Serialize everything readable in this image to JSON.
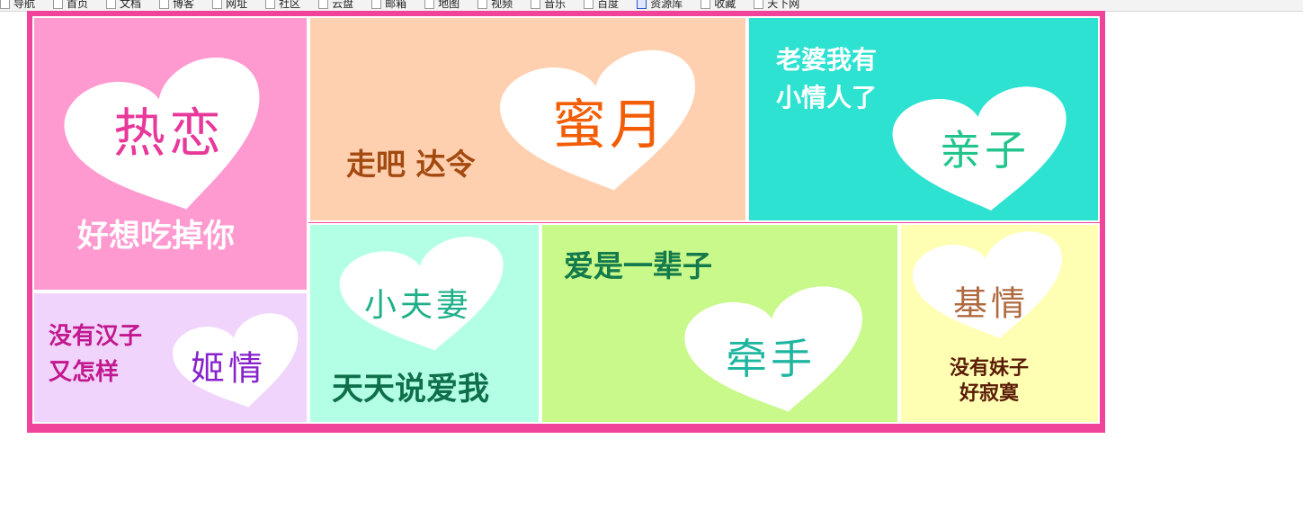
{
  "bookmarks": [
    "导航",
    "首页",
    "文档",
    "博客",
    "网址",
    "社区",
    "云盘",
    "邮箱",
    "地图",
    "视频",
    "音乐",
    "百度",
    "资源库",
    "收藏",
    "天下网"
  ],
  "colors": {
    "frame": "#f0439a",
    "heart": "#ffffff"
  },
  "tiles": {
    "relian": {
      "heart_text": "热恋",
      "caption": "好想吃掉你",
      "bg": "#ff9ad0",
      "heart_color": "#e8389a",
      "caption_color": "#ffffff"
    },
    "miyue": {
      "heart_text": "蜜月",
      "caption": "走吧 达令",
      "bg": "#ffd0b0",
      "heart_color": "#f25d06",
      "caption_color": "#a34a10"
    },
    "qinzi": {
      "heart_text": "亲子",
      "caption": "老婆我有\n小情人了",
      "bg": "#2ee2d2",
      "heart_color": "#21c58c",
      "caption_color": "#ffffff"
    },
    "jiqing2": {
      "heart_text": "姬情",
      "caption": "没有汉子\n又怎样",
      "bg": "#f0d4fc",
      "heart_color": "#8822cc",
      "caption_color": "#c2188e"
    },
    "xiaofuqi": {
      "heart_text": "小夫妻",
      "caption": "天天说爱我",
      "bg": "#b3ffe6",
      "heart_color": "#1fb08a",
      "caption_color": "#0f6f4a"
    },
    "qianshou": {
      "heart_text": "牵手",
      "caption": "爱是一辈子",
      "bg": "#c8f98a",
      "heart_color": "#1fb6a0",
      "caption_color": "#137a4b"
    },
    "jiqing": {
      "heart_text": "基情",
      "caption": "没有妹子\n好寂寞",
      "bg": "#ffffb3",
      "heart_color": "#b06a40",
      "caption_color": "#5b1d08"
    }
  }
}
